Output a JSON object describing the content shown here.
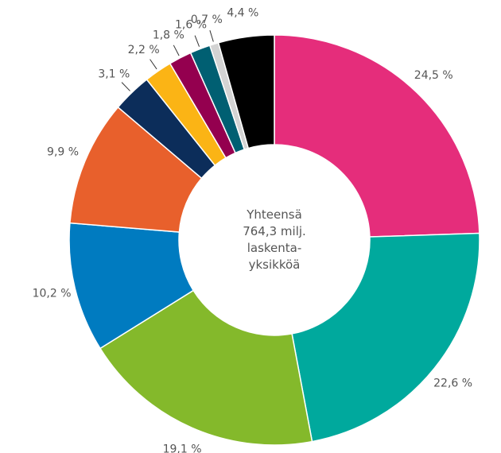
{
  "chart_data": {
    "type": "donut",
    "center_text": [
      "Yhteensä",
      "764,3 milj.",
      "laskenta-",
      "yksikköä"
    ],
    "values": [
      24.5,
      22.6,
      19.1,
      10.2,
      9.9,
      3.1,
      2.2,
      1.8,
      1.6,
      0.7,
      4.4
    ],
    "value_labels": [
      "24,5 %",
      "22,6 %",
      "19,1 %",
      "10,2 %",
      "9,9 %",
      "3,1 %",
      "2,2 %",
      "1,8 %",
      "1,6 %",
      "0,7 %",
      "4,4 %"
    ],
    "colors": [
      "#e52d7b",
      "#00a99d",
      "#84b92b",
      "#007bc0",
      "#e8602c",
      "#0c2d5a",
      "#fbb415",
      "#94004f",
      "#005f72",
      "#d3d3d3",
      "#000000"
    ]
  }
}
